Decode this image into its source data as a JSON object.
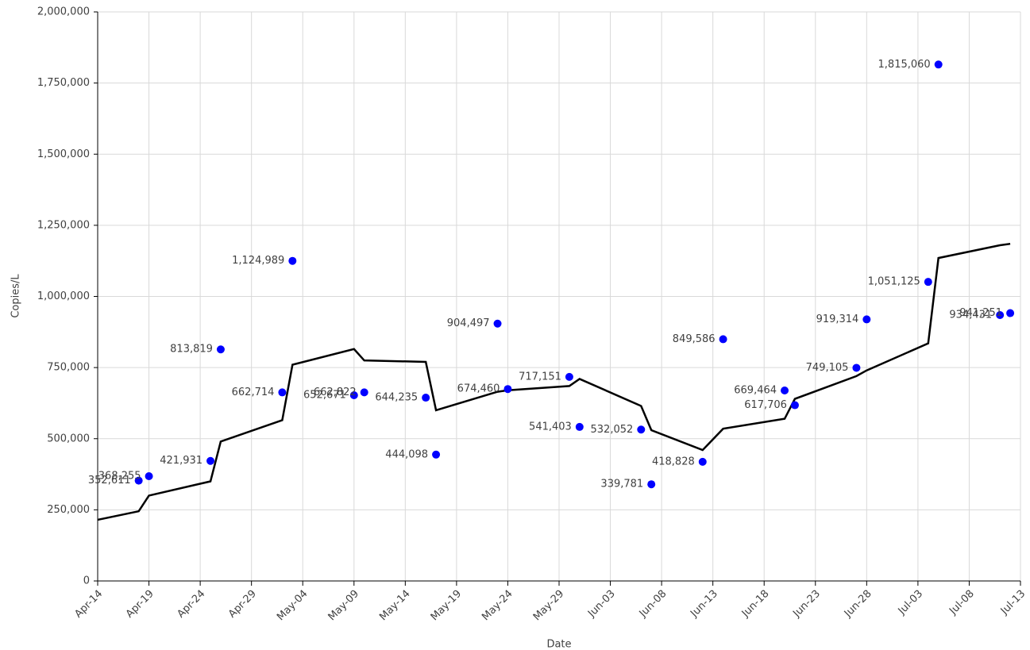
{
  "chart_data": {
    "type": "scatter",
    "x_label": "Date",
    "y_label": "Copies/L",
    "xlim": [
      "04-14",
      "07-13"
    ],
    "xticks": [
      {
        "value": "04-14",
        "label": "Apr-14"
      },
      {
        "value": "04-19",
        "label": "Apr-19"
      },
      {
        "value": "04-24",
        "label": "Apr-24"
      },
      {
        "value": "04-29",
        "label": "Apr-29"
      },
      {
        "value": "05-04",
        "label": "May-04"
      },
      {
        "value": "05-09",
        "label": "May-09"
      },
      {
        "value": "05-14",
        "label": "May-14"
      },
      {
        "value": "05-19",
        "label": "May-19"
      },
      {
        "value": "05-24",
        "label": "May-24"
      },
      {
        "value": "05-29",
        "label": "May-29"
      },
      {
        "value": "06-03",
        "label": "Jun-03"
      },
      {
        "value": "06-08",
        "label": "Jun-08"
      },
      {
        "value": "06-13",
        "label": "Jun-13"
      },
      {
        "value": "06-18",
        "label": "Jun-18"
      },
      {
        "value": "06-23",
        "label": "Jun-23"
      },
      {
        "value": "06-28",
        "label": "Jun-28"
      },
      {
        "value": "07-03",
        "label": "Jul-03"
      },
      {
        "value": "07-08",
        "label": "Jul-08"
      },
      {
        "value": "07-13",
        "label": "Jul-13"
      }
    ],
    "ylim": [
      0,
      2000000
    ],
    "yticks": [
      {
        "value": 0,
        "label": "0"
      },
      {
        "value": 250000,
        "label": "250,000"
      },
      {
        "value": 500000,
        "label": "500,000"
      },
      {
        "value": 750000,
        "label": "750,000"
      },
      {
        "value": 1000000,
        "label": "1,000,000"
      },
      {
        "value": 1250000,
        "label": "1,250,000"
      },
      {
        "value": 1500000,
        "label": "1,500,000"
      },
      {
        "value": 1750000,
        "label": "1,750,000"
      },
      {
        "value": 2000000,
        "label": "2,000,000"
      }
    ],
    "grid": true,
    "points": {
      "color": "#0000ff",
      "x": [
        "04-18",
        "04-19",
        "04-25",
        "04-26",
        "05-02",
        "05-03",
        "05-09",
        "05-10",
        "05-16",
        "05-17",
        "05-23",
        "05-24",
        "05-30",
        "05-31",
        "06-06",
        "06-07",
        "06-12",
        "06-14",
        "06-20",
        "06-21",
        "06-27",
        "06-28",
        "07-04",
        "07-05",
        "07-11",
        "07-12"
      ],
      "values": [
        352611,
        368255,
        421931,
        813819,
        662714,
        1124989,
        652671,
        662822,
        644235,
        444098,
        904497,
        674460,
        717151,
        541403,
        532052,
        339781,
        418828,
        849586,
        669464,
        617706,
        749105,
        919314,
        1051125,
        1815060,
        934431,
        941251
      ],
      "value_labels": [
        "352,611",
        "368,255",
        "421,931",
        "813,819",
        "662,714",
        "1,124,989",
        "652,671",
        "662,822",
        "644,235",
        "444,098",
        "904,497",
        "674,460",
        "717,151",
        "541,403",
        "532,052",
        "339,781",
        "418,828",
        "849,586",
        "669,464",
        "617,706",
        "749,105",
        "919,314",
        "1,051,125",
        "1,815,060",
        "934,431",
        "941,251"
      ]
    },
    "line": {
      "color": "#000000",
      "x": [
        "04-14",
        "04-18",
        "04-19",
        "04-25",
        "04-26",
        "05-02",
        "05-03",
        "05-09",
        "05-10",
        "05-16",
        "05-17",
        "05-23",
        "05-24",
        "05-30",
        "05-31",
        "06-06",
        "06-07",
        "06-12",
        "06-14",
        "06-20",
        "06-21",
        "06-27",
        "06-28",
        "07-04",
        "07-05",
        "07-11",
        "07-12"
      ],
      "values": [
        215000,
        245000,
        300000,
        350000,
        490000,
        565000,
        760000,
        815000,
        775000,
        770000,
        600000,
        665000,
        670000,
        685000,
        710000,
        615000,
        530000,
        460000,
        535000,
        570000,
        640000,
        720000,
        740000,
        835000,
        1135000,
        1180000,
        1185000
      ]
    }
  }
}
